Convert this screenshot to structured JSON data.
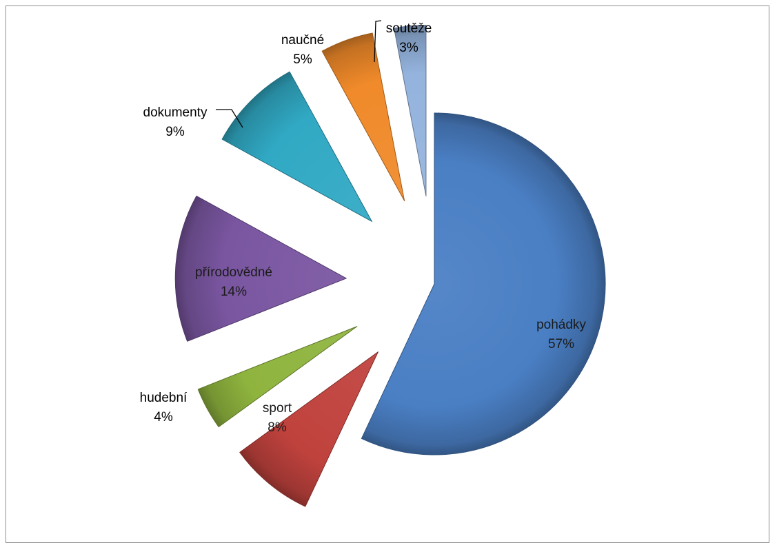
{
  "chart_data": {
    "type": "pie",
    "slices": [
      {
        "label": "pohádky",
        "value": 57,
        "value_label": "57%",
        "color": "#4a7fc4"
      },
      {
        "label": "sport",
        "value": 8,
        "value_label": "8%",
        "color": "#c0423d"
      },
      {
        "label": "hudební",
        "value": 4,
        "value_label": "4%",
        "color": "#8fb43e"
      },
      {
        "label": "přírodovědné",
        "value": 14,
        "value_label": "14%",
        "color": "#7a56a1"
      },
      {
        "label": "dokumenty",
        "value": 9,
        "value_label": "9%",
        "color": "#31a9c4"
      },
      {
        "label": "naučné",
        "value": 5,
        "value_label": "5%",
        "color": "#f08a2a"
      },
      {
        "label": "soutěže",
        "value": 3,
        "value_label": "3%",
        "color": "#94b3dd"
      }
    ],
    "exploded": true,
    "style": "3d-bevel",
    "legend": "none"
  }
}
